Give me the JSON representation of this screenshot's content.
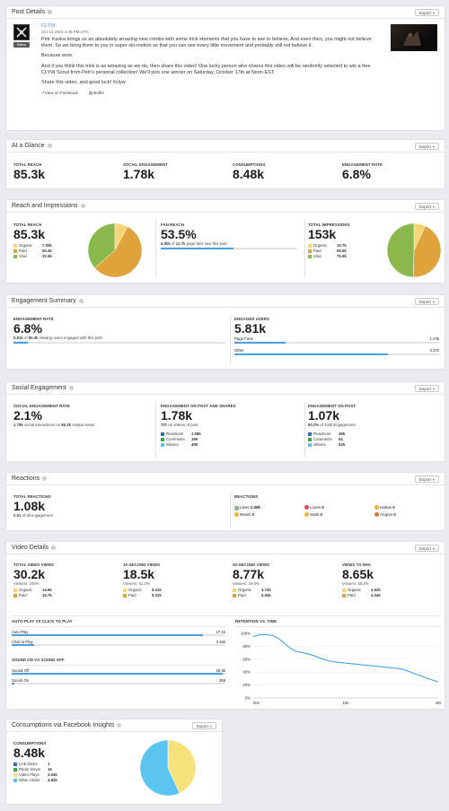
{
  "colors": {
    "organic": "#f6d575",
    "paid": "#e0a23a",
    "viral": "#8bb84c",
    "blue": "#4a9fe0",
    "link": "#4a90e2",
    "light_blue": "#5bc4f1",
    "yellow": "#f6e27a"
  },
  "export_label": "Export",
  "post": {
    "title": "Post Details",
    "page_name": "CLYW",
    "date": "Oct 14 2015 4:45 PM UTC",
    "type_badge": "Native",
    "p1": "Petr Kavka brings us an absolutely amazing new combo with some trick elements that you have to see to believe. And even then, you might not believe them. So we bring them to you in super slo-motion so that you can see every little movement and probably still not believe it.",
    "p2": "Because wow.",
    "p3": "And if you think this trick is as amazing as we do, then share this video! One lucky person who shares this video will be randomly selected to win a free CLYW Scout from Petr's personal collection! We'll pick one winner on Saturday, October 17th at Noon EST.",
    "p4": "Share this video, and good luck! #clyw",
    "view_fb": "View on Facebook",
    "buffer": "Buffer"
  },
  "glance": {
    "title": "At a Glance",
    "items": [
      {
        "label": "Total Reach",
        "value": "85.3k"
      },
      {
        "label": "Social Engagement",
        "value": "1.78k"
      },
      {
        "label": "Consumptions",
        "value": "8.48k"
      },
      {
        "label": "Engagement Rate",
        "value": "6.8%"
      }
    ]
  },
  "reach": {
    "title": "Reach and Impressions",
    "total_reach": {
      "label": "Total Reach",
      "value": "85.3k",
      "legend": [
        {
          "name": "Organic",
          "value": "7.05k"
        },
        {
          "name": "Paid",
          "value": "50.4k"
        },
        {
          "name": "Viral",
          "value": "32.9k"
        }
      ]
    },
    "fan_reach": {
      "label": "Fan Reach",
      "value": "53.5%",
      "note_a": "6.80k",
      "note_b": " of ",
      "note_c": "12.7k",
      "note_d": " page fans saw this post",
      "pct": 0.535
    },
    "impressions": {
      "label": "Total Impressions",
      "value": "153k",
      "legend": [
        {
          "name": "Organic",
          "value": "10.7k"
        },
        {
          "name": "Paid",
          "value": "66.5k"
        },
        {
          "name": "Viral",
          "value": "75.9k"
        }
      ]
    }
  },
  "engagement": {
    "title": "Engagement Summary",
    "rate": {
      "label": "Engagement Rate",
      "value": "6.8%",
      "note_a": "5.81k",
      "note_b": " of ",
      "note_c": "85.3k",
      "note_d": " viewing users engaged with this post",
      "pct": 0.068
    },
    "users": {
      "label": "Engaged Users",
      "value": "5.81k",
      "rows": [
        {
          "name": "Page Fans",
          "value": "1.44k",
          "pct": 0.248
        },
        {
          "name": "Other",
          "value": "4.37k",
          "pct": 0.752
        }
      ]
    }
  },
  "social": {
    "title": "Social Engagement",
    "rate": {
      "label": "Social Engagement Rate",
      "value": "2.1%",
      "note_a": "1.78k",
      "note_b": " social interactions on ",
      "note_c": "85.3k",
      "note_d": " unique views"
    },
    "shares": {
      "label": "Engagement on Post and Shares",
      "value": "1.78k",
      "note_a": "707",
      "note_b": " on shares of post",
      "legend": [
        {
          "name": "Reactions",
          "value": "1.08k"
        },
        {
          "name": "Comments",
          "value": "196"
        },
        {
          "name": "Shares",
          "value": "499"
        }
      ]
    },
    "post": {
      "label": "Engagement on Post",
      "value": "1.07k",
      "note_a": "60.3%",
      "note_b": " of Total Engagement",
      "legend": [
        {
          "name": "Reactions",
          "value": "495"
        },
        {
          "name": "Comments",
          "value": "54"
        },
        {
          "name": "Shares",
          "value": "525"
        }
      ]
    }
  },
  "reactions": {
    "title": "Reactions",
    "total_label": "Total Reactions",
    "total": "1.08k",
    "note_a": "0.61",
    "note_b": " of all engagement",
    "right_label": "Reactions",
    "items": [
      {
        "name": "Likes",
        "value": "1.08k"
      },
      {
        "name": "Loves",
        "value": "0"
      },
      {
        "name": "Hahas",
        "value": "0"
      },
      {
        "name": "Wows",
        "value": "0"
      },
      {
        "name": "Sads",
        "value": "0"
      },
      {
        "name": "Angrys",
        "value": "0"
      }
    ]
  },
  "video": {
    "title": "Video Details",
    "stats": [
      {
        "label": "Total Video Views",
        "value": "30.2k",
        "viewers": "Viewers: 100%",
        "legend": [
          {
            "name": "Organic",
            "value": "14.6k"
          },
          {
            "name": "Paid",
            "value": "15.7k"
          }
        ]
      },
      {
        "label": "10-Second Views",
        "value": "18.5k",
        "viewers": "Viewers: 61.3%",
        "legend": [
          {
            "name": "Organic",
            "value": "9.31k"
          },
          {
            "name": "Paid",
            "value": "9.22k"
          }
        ]
      },
      {
        "label": "30-Second Views",
        "value": "8.77k",
        "viewers": "Viewers: 29.0%",
        "legend": [
          {
            "name": "Organic",
            "value": "4.72k"
          },
          {
            "name": "Paid",
            "value": "4.04k"
          }
        ]
      },
      {
        "label": "Views to 95%",
        "value": "8.65k",
        "viewers": "Viewers: 28.6%",
        "legend": [
          {
            "name": "Organic",
            "value": "4.62k"
          },
          {
            "name": "Paid",
            "value": "4.04k"
          }
        ]
      }
    ],
    "autoplay": {
      "label": "Auto-Play vs Click to Play",
      "rows": [
        {
          "name": "Auto Play",
          "value": "27.1k",
          "pct": 0.896
        },
        {
          "name": "Click to Play",
          "value": "3.16k",
          "pct": 0.104
        }
      ]
    },
    "sound": {
      "label": "Sound On vs Sound Off",
      "rows": [
        {
          "name": "Sound Off",
          "value": "29.9k",
          "pct": 0.988
        },
        {
          "name": "Sound On",
          "value": "368",
          "pct": 0.012
        }
      ]
    },
    "retention_label": "Retention vs. Time"
  },
  "chart_data": [
    {
      "type": "pie",
      "title": "Total Reach",
      "categories": [
        "Organic",
        "Paid",
        "Viral"
      ],
      "values": [
        7.05,
        50.4,
        32.9
      ]
    },
    {
      "type": "pie",
      "title": "Total Impressions",
      "categories": [
        "Organic",
        "Paid",
        "Viral"
      ],
      "values": [
        10.7,
        66.5,
        75.9
      ]
    },
    {
      "type": "line",
      "title": "Retention vs. Time",
      "ylabel": "",
      "y_ticks": [
        "100%",
        "80%",
        "60%",
        "40%",
        "20%",
        "0%"
      ],
      "x_ticks": [
        "00s",
        "15s",
        "30s"
      ],
      "ylim": [
        0,
        100
      ],
      "xlim": [
        0,
        30
      ],
      "x": [
        0,
        1,
        2,
        3,
        4,
        5,
        6,
        7,
        8,
        9,
        10,
        11,
        12,
        13,
        14,
        15,
        16,
        17,
        18,
        19,
        20,
        21,
        22,
        23,
        24,
        25,
        26,
        27,
        28,
        29,
        30
      ],
      "values": [
        95,
        98,
        98,
        97,
        93,
        85,
        77,
        72,
        70,
        68,
        65,
        61,
        58,
        56,
        55,
        54,
        53,
        52,
        51,
        50,
        49,
        48,
        47,
        46,
        45,
        42,
        38,
        35,
        31,
        28,
        25
      ]
    },
    {
      "type": "pie",
      "title": "Consumptions",
      "categories": [
        "Link Clicks",
        "Photo Views",
        "Video Plays",
        "Other Clicks"
      ],
      "values": [
        1,
        16,
        3640,
        4820
      ]
    }
  ],
  "consumptions": {
    "title": "Consumptions via Facebook Insights",
    "label": "Consumptions",
    "value": "8.48k",
    "legend": [
      {
        "name": "Link Clicks",
        "value": "1"
      },
      {
        "name": "Photo Views",
        "value": "16"
      },
      {
        "name": "Video Plays",
        "value": "3.64k"
      },
      {
        "name": "Other Clicks",
        "value": "4.82k"
      }
    ]
  }
}
